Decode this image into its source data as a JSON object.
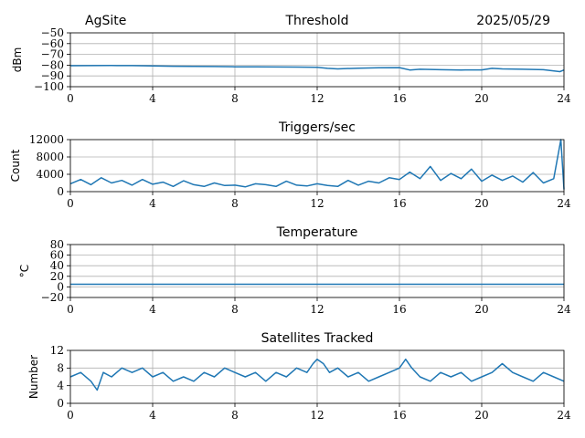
{
  "header": {
    "site": "AgSite",
    "date": "2025/05/29"
  },
  "style": {
    "line_color": "#1f77b4"
  },
  "chart_data": [
    {
      "type": "line",
      "title": "Threshold",
      "xlabel": "",
      "ylabel": "dBm",
      "xlim": [
        0,
        24
      ],
      "ylim": [
        -100,
        -50
      ],
      "x_ticks": [
        0,
        4,
        8,
        12,
        16,
        20,
        24
      ],
      "y_ticks": [
        -100,
        -90,
        -80,
        -70,
        -60,
        -50
      ],
      "y_tick_labels": [
        "−100",
        "−90",
        "−80",
        "−70",
        "−60",
        "−50"
      ],
      "grid": true,
      "series": [
        {
          "x": [
            0,
            1,
            2,
            3,
            4,
            5,
            6,
            7,
            8,
            9,
            10,
            11,
            12,
            12.5,
            13,
            14,
            15,
            16,
            16.5,
            17,
            17.5,
            18,
            19,
            20,
            20.5,
            21,
            22,
            23,
            23.8,
            24
          ],
          "y": [
            -80.5,
            -80.4,
            -80.3,
            -80.4,
            -80.7,
            -81,
            -81.2,
            -81.3,
            -81.5,
            -81.6,
            -81.7,
            -81.8,
            -82,
            -83,
            -83.5,
            -82.8,
            -82.5,
            -82.3,
            -84.5,
            -83.8,
            -84,
            -84.2,
            -84.5,
            -84.4,
            -83,
            -83.5,
            -83.8,
            -84.2,
            -86,
            -84.5
          ]
        }
      ]
    },
    {
      "type": "line",
      "title": "Triggers/sec",
      "xlabel": "",
      "ylabel": "Count",
      "xlim": [
        0,
        24
      ],
      "ylim": [
        0,
        12000
      ],
      "x_ticks": [
        0,
        4,
        8,
        12,
        16,
        20,
        24
      ],
      "y_ticks": [
        0,
        4000,
        8000,
        12000
      ],
      "y_tick_labels": [
        "0",
        "4000",
        "8000",
        "12000"
      ],
      "grid": true,
      "series": [
        {
          "x": [
            0,
            0.5,
            1,
            1.5,
            2,
            2.5,
            3,
            3.5,
            4,
            4.5,
            5,
            5.5,
            6,
            6.5,
            7,
            7.5,
            8,
            8.5,
            9,
            9.5,
            10,
            10.5,
            11,
            11.5,
            12,
            12.5,
            13,
            13.5,
            14,
            14.5,
            15,
            15.5,
            16,
            16.5,
            17,
            17.5,
            18,
            18.5,
            19,
            19.5,
            20,
            20.5,
            21,
            21.5,
            22,
            22.5,
            23,
            23.5,
            23.85,
            24
          ],
          "y": [
            1800,
            2800,
            1600,
            3200,
            2000,
            2600,
            1500,
            2800,
            1700,
            2200,
            1200,
            2500,
            1600,
            1200,
            2000,
            1400,
            1500,
            1100,
            1800,
            1600,
            1200,
            2400,
            1500,
            1300,
            1800,
            1400,
            1200,
            2600,
            1500,
            2400,
            2000,
            3200,
            2800,
            4500,
            3000,
            5800,
            2600,
            4200,
            3000,
            5200,
            2400,
            3800,
            2600,
            3600,
            2200,
            4400,
            2000,
            3000,
            12000,
            500
          ]
        }
      ]
    },
    {
      "type": "line",
      "title": "Temperature",
      "xlabel": "",
      "ylabel": "°C",
      "xlim": [
        0,
        24
      ],
      "ylim": [
        -20,
        80
      ],
      "x_ticks": [
        0,
        4,
        8,
        12,
        16,
        20,
        24
      ],
      "y_ticks": [
        -20,
        0,
        20,
        40,
        60,
        80
      ],
      "y_tick_labels": [
        "−20",
        "0",
        "20",
        "40",
        "60",
        "80"
      ],
      "grid": true,
      "series": [
        {
          "x": [
            0,
            24
          ],
          "y": [
            5,
            5
          ]
        }
      ]
    },
    {
      "type": "line",
      "title": "Satellites Tracked",
      "xlabel": "",
      "ylabel": "Number",
      "xlim": [
        0,
        24
      ],
      "ylim": [
        0,
        12
      ],
      "x_ticks": [
        0,
        4,
        8,
        12,
        16,
        20,
        24
      ],
      "y_ticks": [
        0,
        4,
        8,
        12
      ],
      "y_tick_labels": [
        "0",
        "4",
        "8",
        "12"
      ],
      "grid": true,
      "series": [
        {
          "x": [
            0,
            0.5,
            1,
            1.3,
            1.6,
            2,
            2.5,
            3,
            3.5,
            4,
            4.5,
            5,
            5.5,
            6,
            6.5,
            7,
            7.5,
            8,
            8.5,
            9,
            9.5,
            10,
            10.5,
            11,
            11.5,
            11.8,
            12,
            12.3,
            12.6,
            13,
            13.5,
            14,
            14.5,
            15,
            15.5,
            16,
            16.3,
            16.6,
            17,
            17.5,
            18,
            18.5,
            19,
            19.5,
            20,
            20.5,
            21,
            21.5,
            22,
            22.5,
            23,
            23.5,
            24
          ],
          "y": [
            6,
            7,
            5,
            3,
            7,
            6,
            8,
            7,
            8,
            6,
            7,
            5,
            6,
            5,
            7,
            6,
            8,
            7,
            6,
            7,
            5,
            7,
            6,
            8,
            7,
            9,
            10,
            9,
            7,
            8,
            6,
            7,
            5,
            6,
            7,
            8,
            10,
            8,
            6,
            5,
            7,
            6,
            7,
            5,
            6,
            7,
            9,
            7,
            6,
            5,
            7,
            6,
            5
          ]
        }
      ]
    }
  ]
}
